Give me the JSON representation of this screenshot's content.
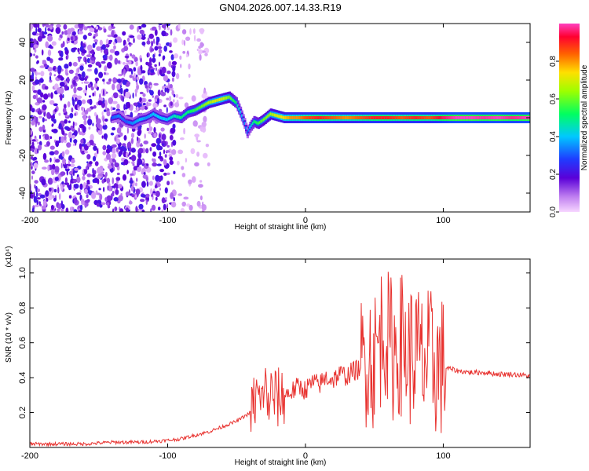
{
  "chart_data": [
    {
      "type": "heatmap",
      "title": "GN04.2026.007.14.33.R19",
      "xlabel": "Height of straight line (km)",
      "ylabel": "Frequency (Hz)",
      "xlim": [
        -200,
        163
      ],
      "ylim": [
        -50,
        50
      ],
      "x_ticks": [
        -200,
        -100,
        0,
        100
      ],
      "y_ticks": [
        -40,
        -20,
        0,
        20,
        40
      ],
      "x_tick_labels": [
        "-200",
        "-100",
        "0",
        "100"
      ],
      "y_tick_labels": [
        "-40",
        "-20",
        "0",
        "20",
        "40"
      ],
      "colorbar": {
        "label": "Normalized spectral amplitude",
        "range": [
          0,
          1
        ],
        "ticks": [
          0.0,
          0.2,
          0.4,
          0.6,
          0.8
        ],
        "tick_labels": [
          "0.0",
          "0.2",
          "0.4",
          "0.6",
          "0.8"
        ],
        "colormap": "rainbow (violet to red)"
      },
      "trace": {
        "x": [
          -140,
          -135,
          -130,
          -125,
          -120,
          -115,
          -110,
          -105,
          -100,
          -95,
          -90,
          -85,
          -80,
          -75,
          -70,
          -65,
          -60,
          -55,
          -50,
          -47,
          -44,
          -42,
          -40,
          -37,
          -34,
          -30,
          -25,
          -20,
          -15,
          -10,
          -5,
          0,
          10,
          20,
          30,
          40,
          50,
          60,
          70,
          80,
          90,
          100,
          110,
          120,
          130,
          140,
          150,
          163
        ],
        "y": [
          0,
          1,
          -2,
          -3,
          -1,
          0,
          2,
          0,
          -1,
          1,
          0,
          3,
          4,
          6,
          8,
          9,
          10,
          11,
          8,
          3,
          -3,
          -8,
          -5,
          -2,
          -3,
          -1,
          2,
          1,
          0,
          0,
          0,
          0,
          0,
          0,
          0,
          0,
          0,
          0,
          0,
          0,
          0,
          0,
          0,
          0,
          0,
          0,
          0,
          0
        ],
        "amplitude": [
          0.3,
          0.35,
          0.3,
          0.35,
          0.4,
          0.35,
          0.4,
          0.4,
          0.4,
          0.45,
          0.5,
          0.5,
          0.55,
          0.6,
          0.65,
          0.7,
          0.7,
          0.6,
          0.5,
          0.4,
          0.35,
          0.3,
          0.4,
          0.5,
          0.55,
          0.6,
          0.65,
          0.7,
          0.75,
          0.8,
          0.8,
          0.85,
          0.9,
          0.85,
          0.8,
          0.85,
          0.9,
          0.9,
          0.85,
          0.9,
          0.85,
          0.95,
          1.0,
          1.0,
          0.98,
          1.0,
          0.97,
          1.0
        ]
      }
    },
    {
      "type": "line",
      "xlabel": "Height of straight line (km)",
      "ylabel": "SNR (10 * v/v)",
      "multiplier_label": "(x10⁴)",
      "xlim": [
        -200,
        163
      ],
      "ylim": [
        0,
        1.08
      ],
      "x_ticks": [
        -200,
        -100,
        0,
        100
      ],
      "y_ticks": [
        0.2,
        0.4,
        0.6,
        0.8,
        1.0
      ],
      "x_tick_labels": [
        "-200",
        "-100",
        "0",
        "100"
      ],
      "y_tick_labels": [
        "0.2",
        "0.4",
        "0.6",
        "0.8",
        "1.0"
      ],
      "series": [
        {
          "name": "SNR",
          "color": "#e8322f",
          "x": [
            -200,
            -180,
            -160,
            -140,
            -120,
            -100,
            -90,
            -80,
            -70,
            -60,
            -50,
            -40,
            -35,
            -32,
            -30,
            -28,
            -25,
            -20,
            -15,
            -10,
            -5,
            0,
            5,
            10,
            15,
            20,
            25,
            30,
            35,
            40,
            45,
            50,
            55,
            58,
            60,
            65,
            70,
            75,
            80,
            85,
            90,
            95,
            100,
            105,
            110,
            120,
            130,
            140,
            150,
            163
          ],
          "values": [
            0.02,
            0.02,
            0.02,
            0.03,
            0.03,
            0.04,
            0.05,
            0.07,
            0.09,
            0.12,
            0.15,
            0.2,
            0.3,
            0.22,
            0.4,
            0.25,
            0.3,
            0.28,
            0.3,
            0.32,
            0.35,
            0.33,
            0.37,
            0.36,
            0.4,
            0.39,
            0.42,
            0.41,
            0.44,
            0.45,
            0.55,
            0.5,
            0.65,
            0.7,
            0.6,
            0.55,
            0.6,
            0.52,
            0.55,
            0.48,
            0.5,
            0.47,
            0.46,
            0.45,
            0.44,
            0.43,
            0.43,
            0.42,
            0.42,
            0.41
          ]
        }
      ]
    }
  ]
}
